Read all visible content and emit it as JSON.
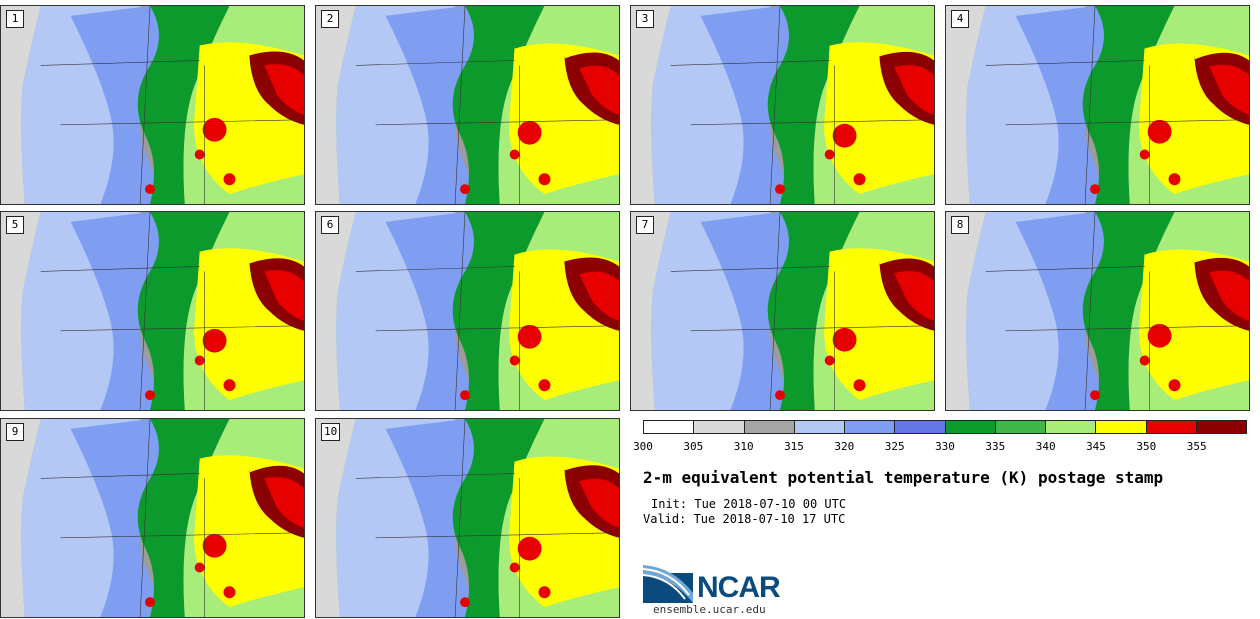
{
  "panels": [
    {
      "label": "1"
    },
    {
      "label": "2"
    },
    {
      "label": "3"
    },
    {
      "label": "4"
    },
    {
      "label": "5"
    },
    {
      "label": "6"
    },
    {
      "label": "7"
    },
    {
      "label": "8"
    },
    {
      "label": "9"
    },
    {
      "label": "10"
    }
  ],
  "colorbar": {
    "ticks": [
      "300",
      "305",
      "310",
      "315",
      "320",
      "325",
      "330",
      "335",
      "340",
      "345",
      "350",
      "355"
    ],
    "colors": [
      "#ffffff",
      "#d9d9d9",
      "#a6a6a6",
      "#b4c8f6",
      "#7f9ef2",
      "#6678e6",
      "#0d9a2c",
      "#42b547",
      "#a8ec7a",
      "#ffff00",
      "#e60000",
      "#8b0000"
    ]
  },
  "title": "2-m equivalent potential temperature (K) postage stamp",
  "init": "Init: Tue 2018-07-10 00 UTC",
  "valid": "Valid: Tue 2018-07-10 17 UTC",
  "logo": {
    "name": "NCAR",
    "url": "ensemble.ucar.edu"
  }
}
